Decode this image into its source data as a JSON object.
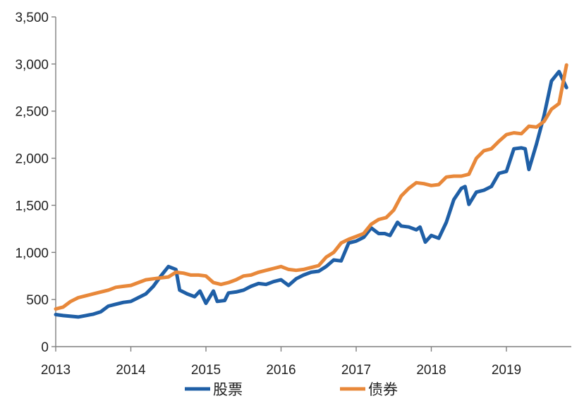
{
  "chart_data": {
    "type": "line",
    "title": "",
    "xlabel": "",
    "ylabel": "",
    "ylim": [
      0,
      3500
    ],
    "xlim": [
      2013,
      2019.8
    ],
    "y_ticks": [
      0,
      500,
      1000,
      1500,
      2000,
      2500,
      3000,
      3500
    ],
    "y_tick_labels": [
      "0",
      "500",
      "1,000",
      "1,500",
      "2,000",
      "2,500",
      "3,000",
      "3,500"
    ],
    "x_ticks": [
      2013,
      2014,
      2015,
      2016,
      2017,
      2018,
      2019
    ],
    "x_tick_labels": [
      "2013",
      "2014",
      "2015",
      "2016",
      "2017",
      "2018",
      "2019"
    ],
    "grid": false,
    "legend_position": "bottom",
    "series": [
      {
        "name": "股票",
        "color": "#1f5fa6",
        "x": [
          2013.0,
          2013.1,
          2013.3,
          2013.4,
          2013.5,
          2013.6,
          2013.7,
          2013.8,
          2013.9,
          2014.0,
          2014.2,
          2014.3,
          2014.4,
          2014.5,
          2014.6,
          2014.65,
          2014.75,
          2014.85,
          2014.92,
          2015.0,
          2015.1,
          2015.15,
          2015.25,
          2015.3,
          2015.4,
          2015.5,
          2015.6,
          2015.7,
          2015.8,
          2015.9,
          2016.0,
          2016.1,
          2016.2,
          2016.3,
          2016.4,
          2016.5,
          2016.6,
          2016.7,
          2016.8,
          2016.9,
          2017.0,
          2017.1,
          2017.2,
          2017.3,
          2017.38,
          2017.45,
          2017.55,
          2017.6,
          2017.7,
          2017.8,
          2017.85,
          2017.92,
          2018.0,
          2018.1,
          2018.2,
          2018.3,
          2018.4,
          2018.45,
          2018.5,
          2018.6,
          2018.7,
          2018.8,
          2018.9,
          2019.0,
          2019.1,
          2019.2,
          2019.25,
          2019.3,
          2019.4,
          2019.5,
          2019.6,
          2019.7,
          2019.8
        ],
        "values": [
          340,
          330,
          315,
          330,
          345,
          370,
          430,
          450,
          470,
          480,
          560,
          640,
          750,
          850,
          820,
          600,
          560,
          530,
          590,
          460,
          590,
          480,
          490,
          570,
          580,
          600,
          640,
          670,
          660,
          690,
          710,
          650,
          720,
          760,
          790,
          800,
          850,
          920,
          910,
          1100,
          1120,
          1160,
          1260,
          1200,
          1200,
          1180,
          1320,
          1280,
          1270,
          1240,
          1270,
          1110,
          1180,
          1150,
          1320,
          1560,
          1680,
          1700,
          1510,
          1640,
          1660,
          1700,
          1840,
          1860,
          2100,
          2110,
          2100,
          1880,
          2150,
          2450,
          2820,
          2920,
          2750
        ]
      },
      {
        "name": "债券",
        "color": "#e8883a",
        "x": [
          2013.0,
          2013.1,
          2013.2,
          2013.3,
          2013.4,
          2013.5,
          2013.6,
          2013.7,
          2013.8,
          2013.9,
          2014.0,
          2014.1,
          2014.2,
          2014.3,
          2014.4,
          2014.5,
          2014.6,
          2014.7,
          2014.8,
          2014.9,
          2015.0,
          2015.1,
          2015.2,
          2015.3,
          2015.4,
          2015.5,
          2015.6,
          2015.7,
          2015.8,
          2015.9,
          2016.0,
          2016.1,
          2016.2,
          2016.3,
          2016.4,
          2016.5,
          2016.6,
          2016.7,
          2016.8,
          2016.9,
          2017.0,
          2017.1,
          2017.2,
          2017.3,
          2017.4,
          2017.5,
          2017.6,
          2017.7,
          2017.8,
          2017.9,
          2018.0,
          2018.1,
          2018.2,
          2018.3,
          2018.4,
          2018.5,
          2018.6,
          2018.7,
          2018.8,
          2018.9,
          2019.0,
          2019.1,
          2019.2,
          2019.3,
          2019.4,
          2019.5,
          2019.6,
          2019.7,
          2019.8
        ],
        "values": [
          400,
          420,
          480,
          520,
          540,
          560,
          580,
          600,
          630,
          640,
          650,
          680,
          710,
          720,
          730,
          740,
          790,
          780,
          760,
          760,
          750,
          680,
          660,
          680,
          710,
          750,
          760,
          790,
          810,
          830,
          850,
          820,
          810,
          820,
          840,
          860,
          950,
          1000,
          1100,
          1140,
          1170,
          1200,
          1300,
          1350,
          1370,
          1450,
          1600,
          1680,
          1740,
          1730,
          1710,
          1720,
          1800,
          1810,
          1810,
          1830,
          2000,
          2080,
          2100,
          2180,
          2250,
          2270,
          2260,
          2340,
          2330,
          2390,
          2520,
          2580,
          2990
        ]
      }
    ]
  }
}
